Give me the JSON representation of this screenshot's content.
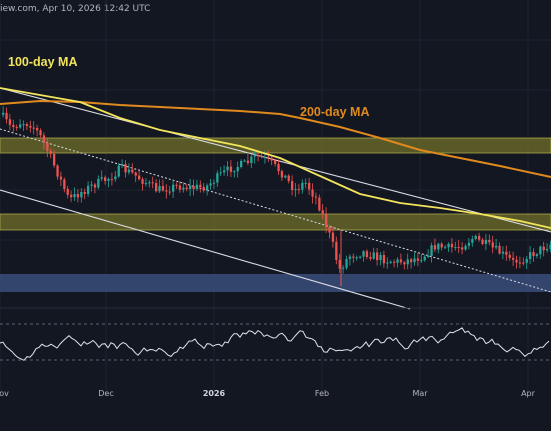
{
  "header": {
    "source_fragment": "iew.com, Apr 10, 2026 12:42 UTC"
  },
  "colors": {
    "background": "#131722",
    "up_candle": "#26a69a",
    "down_candle": "#ef5350",
    "ma100": "#f2e55c",
    "ma200": "#e08a1e",
    "zone_yellow": "#6b6a2a",
    "zone_blue": "#3a4c7a",
    "rsi_line": "#dfe3ec"
  },
  "chart_data": [
    {
      "type": "line",
      "title": "",
      "legend": "none",
      "grid": true,
      "annotations": [
        {
          "id": "ma100_label",
          "text": "100-day MA",
          "color": "#f2e55c"
        },
        {
          "id": "ma200_label",
          "text": "200-day MA",
          "color": "#e08a1e"
        }
      ],
      "series": [
        {
          "name": "100-day MA"
        },
        {
          "name": "200-day MA"
        }
      ],
      "zones": [
        {
          "kind": "resistance",
          "color": "#6b6a2a"
        },
        {
          "kind": "resistance",
          "color": "#6b6a2a"
        },
        {
          "kind": "support",
          "color": "#3a4c7a"
        }
      ],
      "x_tick_labels": [
        {
          "text": "ov",
          "bold": false
        },
        {
          "text": "Dec",
          "bold": false
        },
        {
          "text": "2026",
          "bold": true
        },
        {
          "text": "Feb",
          "bold": false
        },
        {
          "text": "Mar",
          "bold": false
        },
        {
          "text": "Apr",
          "bold": false
        }
      ]
    },
    {
      "type": "line",
      "title": "",
      "series": [
        {
          "name": ""
        }
      ],
      "grid": true,
      "reference_lines": 2
    }
  ]
}
